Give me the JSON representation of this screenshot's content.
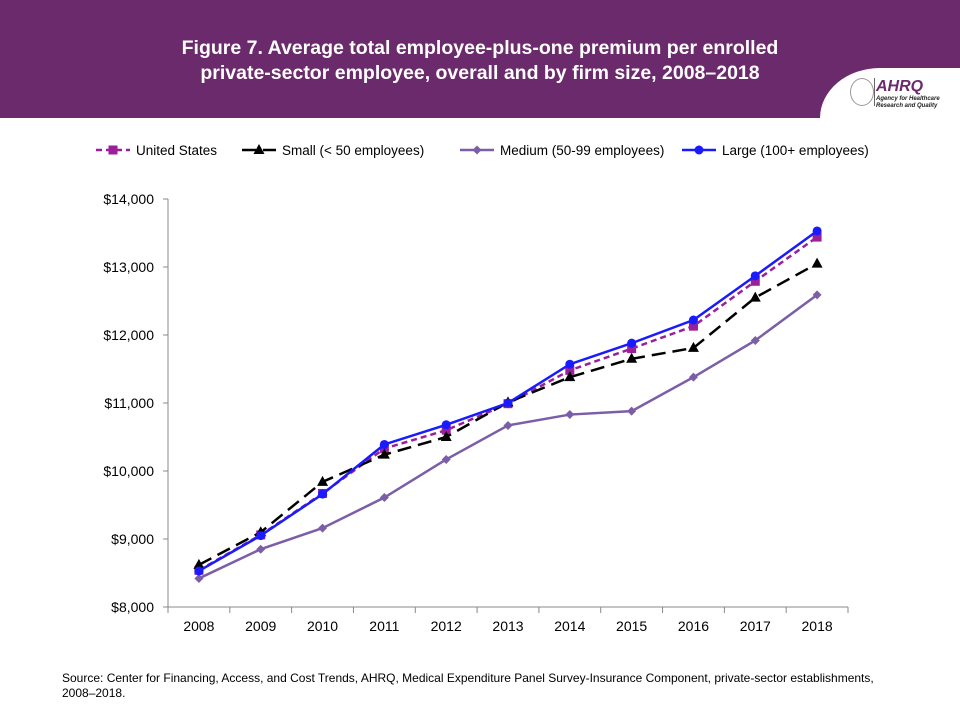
{
  "header": {
    "title_line1": "Figure 7. Average total employee-plus-one premium per enrolled",
    "title_line2": "private-sector employee, overall and by firm size, 2008–2018",
    "logo_text": "AHRQ",
    "logo_sub1": "Agency for Healthcare",
    "logo_sub2": "Research and Quality"
  },
  "source": "Source: Center for Financing, Access, and Cost Trends, AHRQ, Medical Expenditure Panel Survey-Insurance Component, private-sector establishments, 2008–2018.",
  "chart_data": {
    "type": "line",
    "title": "Figure 7. Average total employee-plus-one premium per enrolled private-sector employee, overall and by firm size, 2008–2018",
    "xlabel": "",
    "ylabel": "",
    "categories": [
      "2008",
      "2009",
      "2010",
      "2011",
      "2012",
      "2013",
      "2014",
      "2015",
      "2016",
      "2017",
      "2018"
    ],
    "ylim": [
      8000,
      14000
    ],
    "yticks": [
      "$8,000",
      "$9,000",
      "$10,000",
      "$11,000",
      "$12,000",
      "$13,000",
      "$14,000"
    ],
    "legend_position": "top",
    "grid": false,
    "series": [
      {
        "name": "United States",
        "color": "#9b1f9b",
        "dash": "dashed",
        "marker": "square",
        "values": [
          8540,
          9060,
          9670,
          10330,
          10600,
          10990,
          11480,
          11800,
          12130,
          12790,
          13440
        ]
      },
      {
        "name": "Small (< 50 employees)",
        "color": "#000000",
        "dash": "longdash",
        "marker": "triangle",
        "values": [
          8620,
          9100,
          9840,
          10240,
          10500,
          11010,
          11380,
          11650,
          11810,
          12550,
          13050
        ]
      },
      {
        "name": "Medium (50-99 employees)",
        "color": "#7b5ea7",
        "dash": "solid",
        "marker": "diamond",
        "values": [
          8420,
          8850,
          9160,
          9610,
          10170,
          10670,
          10830,
          10880,
          11380,
          11920,
          12590
        ]
      },
      {
        "name": "Large (100+ employees)",
        "color": "#1a1aff",
        "dash": "solid",
        "marker": "circle",
        "values": [
          8530,
          9050,
          9660,
          10390,
          10680,
          11000,
          11570,
          11880,
          12220,
          12870,
          13530
        ]
      }
    ]
  }
}
